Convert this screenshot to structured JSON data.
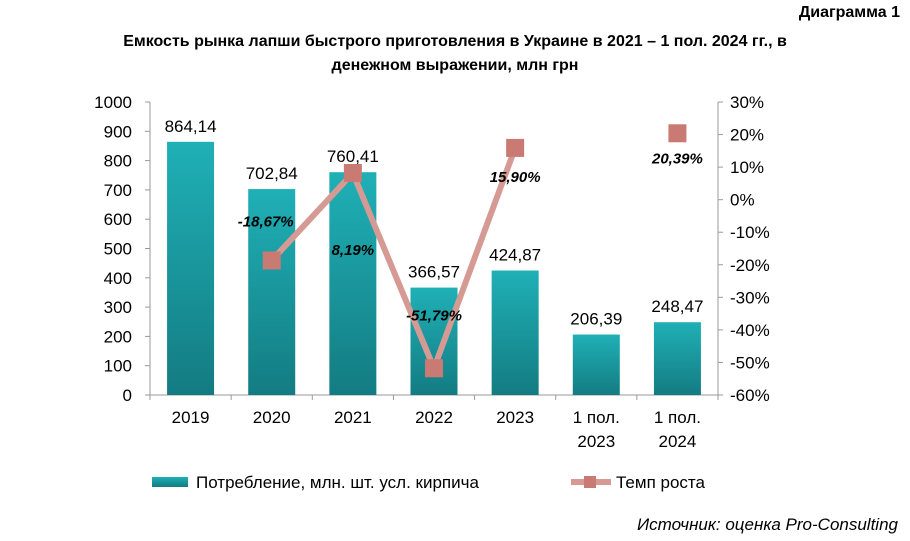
{
  "header": {
    "diagram_label": "Диаграмма 1",
    "title_line1": "Емкость рынка лапши быстрого приготовления в Украине в 2021 – 1 пол. 2024 гг., в",
    "title_line2": "денежном выражении, млн грн"
  },
  "source": "Источник: оценка Pro-Consulting",
  "colors": {
    "bar": "#1a9aa0",
    "line": "#d49a93",
    "marker": "#c97a73"
  },
  "chart_data": {
    "type": "bar",
    "categories": [
      [
        "2019"
      ],
      [
        "2020"
      ],
      [
        "2021"
      ],
      [
        "2022"
      ],
      [
        "2023"
      ],
      [
        "1 пол.",
        "2023"
      ],
      [
        "1 пол.",
        "2024"
      ]
    ],
    "series": [
      {
        "name": "Потребление, млн. шт. усл. кирпича",
        "type": "bar",
        "axis": "left",
        "values": [
          864.14,
          702.84,
          760.41,
          366.57,
          424.87,
          206.39,
          248.47
        ],
        "labels": [
          "864,14",
          "702,84",
          "760,41",
          "366,57",
          "424,87",
          "206,39",
          "248,47"
        ]
      },
      {
        "name": "Темп роста",
        "type": "line",
        "axis": "right",
        "values": [
          null,
          -18.67,
          8.19,
          -51.79,
          15.9,
          null,
          20.39
        ],
        "labels": [
          "",
          "-18,67%",
          "8,19%",
          "-51,79%",
          "15,90%",
          "",
          "20,39%"
        ],
        "connected_through": 4
      }
    ],
    "y_left": {
      "min": 0,
      "max": 1000,
      "step": 100,
      "ticks": [
        "0",
        "100",
        "200",
        "300",
        "400",
        "500",
        "600",
        "700",
        "800",
        "900",
        "1000"
      ]
    },
    "y_right": {
      "min": -60,
      "max": 30,
      "step": 10,
      "ticks": [
        "-60%",
        "-50%",
        "-40%",
        "-30%",
        "-20%",
        "-10%",
        "0%",
        "10%",
        "20%",
        "30%"
      ]
    },
    "grid": false,
    "legend_position": "bottom"
  }
}
